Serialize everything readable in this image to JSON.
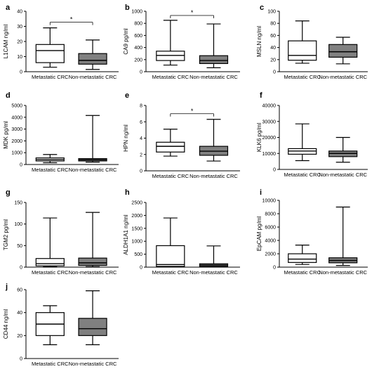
{
  "colors": {
    "metastatic_fill": "#ffffff",
    "non_metastatic_fill": "#808080",
    "stroke": "#000000"
  },
  "chart_data": [
    {
      "type": "box",
      "letter": "a",
      "ylabel": "L1CAM ng/ml",
      "ylim": [
        0,
        40
      ],
      "yticks": [
        0,
        10,
        20,
        30,
        40
      ],
      "categories": [
        "Metastatic CRC",
        "Non-metastatic CRC"
      ],
      "boxes": [
        {
          "min": 3,
          "q1": 6,
          "median": 14,
          "q3": 18,
          "max": 29
        },
        {
          "min": 1.5,
          "q1": 5,
          "median": 7.5,
          "q3": 12,
          "max": 21
        }
      ],
      "significance": "*"
    },
    {
      "type": "box",
      "letter": "b",
      "ylabel": "CA9 pg/ml",
      "ylim": [
        0,
        1000
      ],
      "yticks": [
        0,
        200,
        400,
        600,
        800,
        1000
      ],
      "categories": [
        "Metastatic CRC",
        "Non-metastatic CRC"
      ],
      "boxes": [
        {
          "min": 110,
          "q1": 185,
          "median": 270,
          "q3": 340,
          "max": 850
        },
        {
          "min": 65,
          "q1": 135,
          "median": 185,
          "q3": 265,
          "max": 790
        }
      ],
      "significance": "*"
    },
    {
      "type": "box",
      "letter": "c",
      "ylabel": "MSLN ng/ml",
      "ylim": [
        0,
        100
      ],
      "yticks": [
        0,
        20,
        40,
        60,
        80,
        100
      ],
      "categories": [
        "Metastatic CRC",
        "Non-metastatic CRC"
      ],
      "boxes": [
        {
          "min": 14,
          "q1": 19,
          "median": 27,
          "q3": 51,
          "max": 84
        },
        {
          "min": 13,
          "q1": 24,
          "median": 33,
          "q3": 45,
          "max": 57
        }
      ],
      "significance": ""
    },
    {
      "type": "box",
      "letter": "d",
      "ylabel": "MDK pg/ml",
      "ylim": [
        0,
        5000
      ],
      "yticks": [
        0,
        1000,
        2000,
        3000,
        4000,
        5000
      ],
      "categories": [
        "Metastatic CRC",
        "Non-metastatic CRC"
      ],
      "boxes": [
        {
          "min": 150,
          "q1": 300,
          "median": 420,
          "q3": 560,
          "max": 850
        },
        {
          "min": 200,
          "q1": 300,
          "median": 400,
          "q3": 500,
          "max": 4150
        }
      ],
      "significance": ""
    },
    {
      "type": "box",
      "letter": "e",
      "ylabel": "HPN ng/ml",
      "ylim": [
        0,
        8
      ],
      "yticks": [
        0,
        2,
        4,
        6,
        8
      ],
      "categories": [
        "Metastatic CRC",
        "Non-metastatic CRC"
      ],
      "boxes": [
        {
          "min": 1.8,
          "q1": 2.3,
          "median": 3.0,
          "q3": 3.5,
          "max": 5.1
        },
        {
          "min": 1.2,
          "q1": 1.9,
          "median": 2.4,
          "q3": 3.0,
          "max": 6.3
        }
      ],
      "significance": "*"
    },
    {
      "type": "box",
      "letter": "f",
      "ylabel": "KLK6 pg/ml",
      "ylim": [
        0,
        40000
      ],
      "yticks": [
        0,
        10000,
        20000,
        30000,
        40000
      ],
      "categories": [
        "Metastatic CRC",
        "Non-metastatic CRC"
      ],
      "boxes": [
        {
          "min": 5500,
          "q1": 9500,
          "median": 11500,
          "q3": 13000,
          "max": 28500
        },
        {
          "min": 4500,
          "q1": 8000,
          "median": 10000,
          "q3": 11500,
          "max": 20000
        }
      ],
      "significance": ""
    },
    {
      "type": "box",
      "letter": "g",
      "ylabel": "TGM2 pg/ml",
      "ylim": [
        0,
        150
      ],
      "yticks": [
        0,
        50,
        100,
        150
      ],
      "categories": [
        "Metastatic CRC",
        "Non-metastatic CRC"
      ],
      "boxes": [
        {
          "min": 1,
          "q1": 3,
          "median": 8,
          "q3": 20,
          "max": 114
        },
        {
          "min": 1,
          "q1": 4,
          "median": 10,
          "q3": 21,
          "max": 127
        }
      ],
      "significance": ""
    },
    {
      "type": "box",
      "letter": "h",
      "ylabel": "ALDH1A1 ng/ml",
      "ylim": [
        0,
        2500
      ],
      "yticks": [
        0,
        500,
        1000,
        1500,
        2000,
        2500
      ],
      "categories": [
        "Metastatic CRC",
        "Non-metastatic CRC"
      ],
      "boxes": [
        {
          "min": 5,
          "q1": 30,
          "median": 100,
          "q3": 830,
          "max": 1900
        },
        {
          "min": 5,
          "q1": 30,
          "median": 80,
          "q3": 130,
          "max": 820
        }
      ],
      "significance": ""
    },
    {
      "type": "box",
      "letter": "i",
      "ylabel": "EpCAM pg/ml",
      "ylim": [
        0,
        10000
      ],
      "yticks": [
        0,
        2000,
        4000,
        6000,
        8000,
        10000
      ],
      "categories": [
        "Metastatic CRC",
        "Non-metastatic CRC"
      ],
      "boxes": [
        {
          "min": 400,
          "q1": 700,
          "median": 1200,
          "q3": 2000,
          "max": 3300
        },
        {
          "min": 250,
          "q1": 650,
          "median": 1000,
          "q3": 1400,
          "max": 9000
        }
      ],
      "significance": ""
    },
    {
      "type": "box",
      "letter": "j",
      "ylabel": "CD44 ng/ml",
      "ylim": [
        0,
        60
      ],
      "yticks": [
        0,
        20,
        40,
        60
      ],
      "categories": [
        "Metastatic CRC",
        "Non-metastatic CRC"
      ],
      "boxes": [
        {
          "min": 12,
          "q1": 20,
          "median": 30,
          "q3": 40,
          "max": 46
        },
        {
          "min": 12,
          "q1": 20,
          "median": 26,
          "q3": 35,
          "max": 59
        }
      ],
      "significance": ""
    }
  ]
}
